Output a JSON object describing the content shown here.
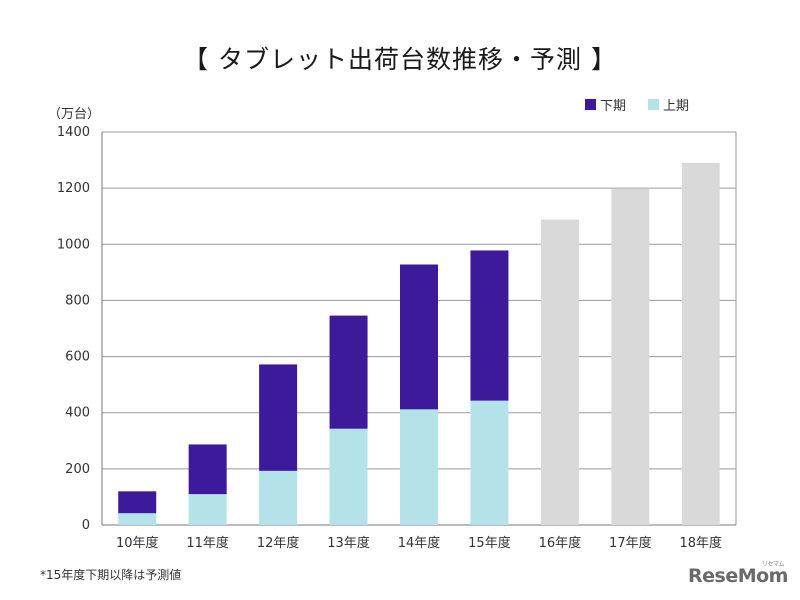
{
  "page": {
    "title": "【 タブレット出荷台数推移・予測 】",
    "footnote": "*15年度下期以降は予測値",
    "logo": "ReseMom",
    "logo_sub": "リセマム"
  },
  "chart_data": {
    "type": "bar",
    "stacked": true,
    "title": "【 タブレット出荷台数推移・予測 】",
    "unit_label": "（万台）",
    "xlabel": "",
    "ylabel": "（万台）",
    "ylim": [
      0,
      1400
    ],
    "yticks": [
      0,
      200,
      400,
      600,
      800,
      1000,
      1200,
      1400
    ],
    "categories": [
      "10年度",
      "11年度",
      "12年度",
      "13年度",
      "14年度",
      "15年度",
      "16年度",
      "17年度",
      "18年度"
    ],
    "series": [
      {
        "name": "上期",
        "color": "#b3e3e8",
        "values": [
          42,
          110,
          193,
          343,
          412,
          443,
          null,
          null,
          null
        ]
      },
      {
        "name": "下期",
        "color": "#3d1a99",
        "values": [
          78,
          177,
          379,
          403,
          516,
          535,
          null,
          null,
          null
        ]
      }
    ],
    "forecast": {
      "name": "予測値",
      "color": "#d9d9d9",
      "values": [
        null,
        null,
        null,
        null,
        null,
        null,
        1088,
        1197,
        1290
      ]
    },
    "legend": [
      {
        "name": "下期",
        "color": "#3d1a99"
      },
      {
        "name": "上期",
        "color": "#b3e3e8"
      }
    ],
    "legend_position": "top-right",
    "grid": true
  }
}
